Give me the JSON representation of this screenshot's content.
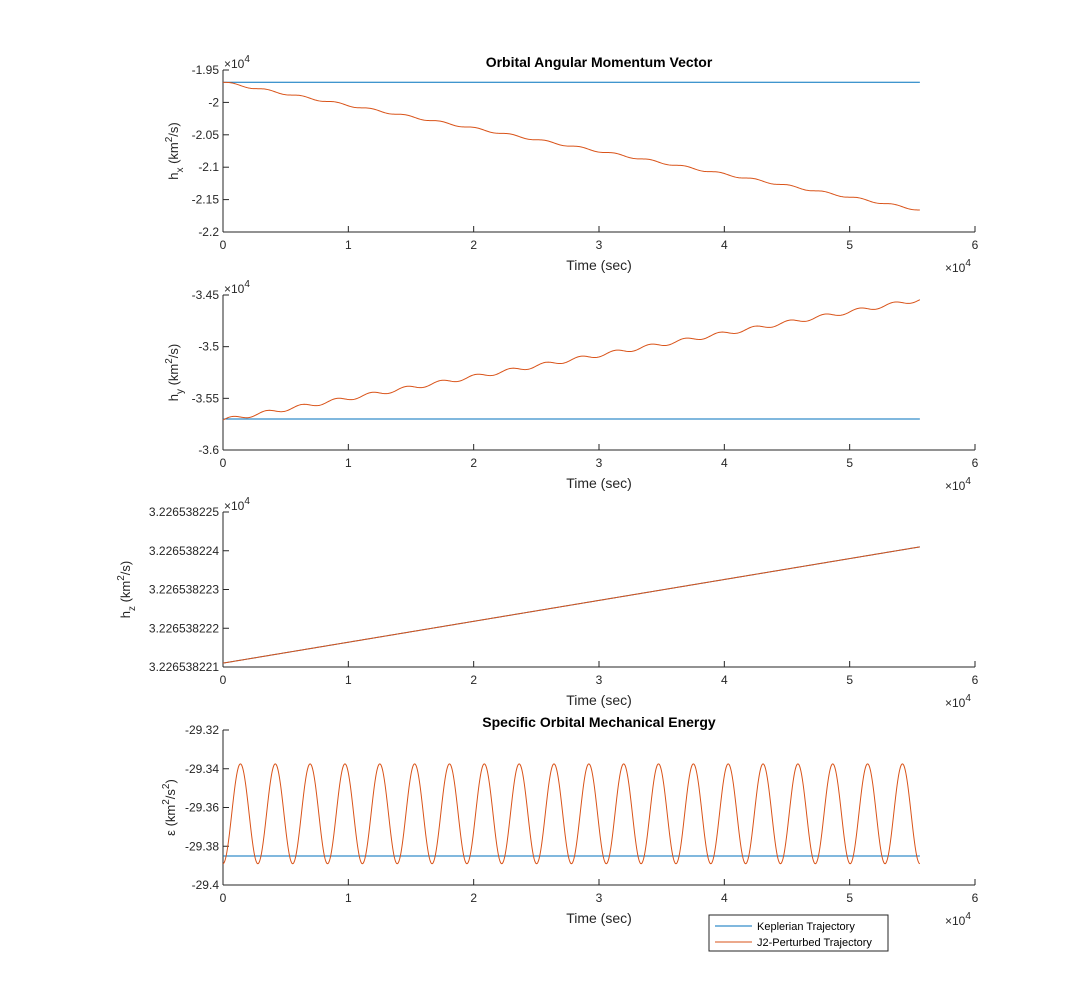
{
  "chart_data": [
    {
      "type": "line",
      "title": "Orbital Angular Momentum Vector",
      "xlabel": "Time (sec)",
      "ylabel": {
        "base": "h",
        "sub": "x",
        "unit_pre": " (km",
        "unit_sup": "2",
        "unit_post": "/s)"
      },
      "x_exponent": "×10",
      "x_exponent_power": "4",
      "y_exponent": "×10",
      "y_exponent_power": "4",
      "xlim": [
        0,
        6
      ],
      "ylim": [
        -2.2,
        -1.95
      ],
      "xticks": [
        "0",
        "1",
        "2",
        "3",
        "4",
        "5",
        "6"
      ],
      "yticks": [
        "-1.95",
        "-2",
        "-2.05",
        "-2.1",
        "-2.15",
        "-2.2"
      ],
      "ytick_values": [
        -1.95,
        -2.0,
        -2.05,
        -2.1,
        -2.15,
        -2.2
      ],
      "series": [
        {
          "name": "Keplerian Trajectory",
          "kind": "const",
          "y": -1.969,
          "x_end": 5.56
        },
        {
          "name": "J2-Perturbed Trajectory",
          "kind": "wavy",
          "y_start": -1.969,
          "y_end": -2.166,
          "amp": 0.0015,
          "x_end": 5.56
        }
      ]
    },
    {
      "type": "line",
      "xlabel": "Time (sec)",
      "ylabel": {
        "base": "h",
        "sub": "y",
        "unit_pre": " (km",
        "unit_sup": "2",
        "unit_post": "/s)"
      },
      "x_exponent": "×10",
      "x_exponent_power": "4",
      "y_exponent": "×10",
      "y_exponent_power": "4",
      "xlim": [
        0,
        6
      ],
      "ylim": [
        -3.6,
        -3.45
      ],
      "xticks": [
        "0",
        "1",
        "2",
        "3",
        "4",
        "5",
        "6"
      ],
      "yticks": [
        "-3.45",
        "-3.5",
        "-3.55",
        "-3.6"
      ],
      "ytick_values": [
        -3.45,
        -3.5,
        -3.55,
        -3.6
      ],
      "series": [
        {
          "name": "Keplerian Trajectory",
          "kind": "const",
          "y": -3.57,
          "x_end": 5.56
        },
        {
          "name": "J2-Perturbed Trajectory",
          "kind": "wavy",
          "y_start": -3.571,
          "y_end": -3.4545,
          "amp": 0.0019,
          "x_end": 5.56
        }
      ]
    },
    {
      "type": "line",
      "xlabel": "Time (sec)",
      "ylabel": {
        "base": "h",
        "sub": "z",
        "unit_pre": " (km",
        "unit_sup": "2",
        "unit_post": "/s)"
      },
      "x_exponent": "×10",
      "x_exponent_power": "4",
      "y_exponent": "×10",
      "y_exponent_power": "4",
      "xlim": [
        0,
        6
      ],
      "ylim": [
        3.226538221,
        3.226538225
      ],
      "xticks": [
        "0",
        "1",
        "2",
        "3",
        "4",
        "5",
        "6"
      ],
      "yticks": [
        "3.226538225",
        "3.226538224",
        "3.226538223",
        "3.226538222",
        "3.226538221"
      ],
      "ytick_values": [
        3.226538225,
        3.226538224,
        3.226538223,
        3.226538222,
        3.226538221
      ],
      "series": [
        {
          "name": "Keplerian Trajectory",
          "kind": "linear",
          "y_start": 3.2265382211,
          "y_end": 3.2265382241,
          "x_end": 5.56
        },
        {
          "name": "J2-Perturbed Trajectory",
          "kind": "linear",
          "y_start": 3.2265382211,
          "y_end": 3.2265382241,
          "x_end": 5.56
        }
      ]
    },
    {
      "type": "line",
      "title": "Specific Orbital Mechanical Energy",
      "xlabel": "Time (sec)",
      "ylabel": {
        "base": "ε",
        "sub": "",
        "unit_pre": " (km",
        "unit_sup": "2",
        "unit_post": "/s",
        "unit_sup2": "2",
        "unit_end": ")"
      },
      "x_exponent": "×10",
      "x_exponent_power": "4",
      "xlim": [
        0,
        6
      ],
      "ylim": [
        -29.4,
        -29.32
      ],
      "xticks": [
        "0",
        "1",
        "2",
        "3",
        "4",
        "5",
        "6"
      ],
      "yticks": [
        "-29.32",
        "-29.34",
        "-29.36",
        "-29.38",
        "-29.4"
      ],
      "ytick_values": [
        -29.32,
        -29.34,
        -29.36,
        -29.38,
        -29.4
      ],
      "series": [
        {
          "name": "Keplerian Trajectory",
          "kind": "const",
          "y": -29.385,
          "x_end": 5.56
        },
        {
          "name": "J2-Perturbed Trajectory",
          "kind": "oscillation",
          "y_min": -29.389,
          "y_max": -29.3375,
          "cycles": 20,
          "x_end": 5.56
        }
      ]
    }
  ],
  "legend": {
    "placement": "bottom-right",
    "entries": [
      {
        "label": "Keplerian Trajectory",
        "color": "#0072BD"
      },
      {
        "label": "J2-Perturbed Trajectory",
        "color": "#D95319"
      }
    ]
  },
  "colors": {
    "keplerian": "#0072BD",
    "j2": "#D95319",
    "axis": "#262626"
  }
}
